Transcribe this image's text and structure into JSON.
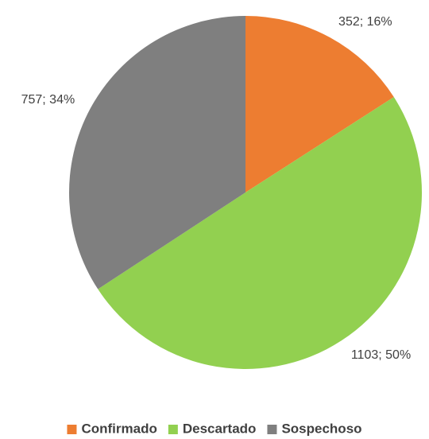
{
  "chart_data": {
    "type": "pie",
    "categories": [
      "Confirmado",
      "Descartado",
      "Sospechoso"
    ],
    "values": [
      352,
      1103,
      757
    ],
    "value_labels": [
      "352; 16%",
      "1103; 50%",
      "757; 34%"
    ],
    "colors": [
      "#ED7D31",
      "#92D050",
      "#7F7F7F"
    ],
    "legend": "bottom"
  }
}
